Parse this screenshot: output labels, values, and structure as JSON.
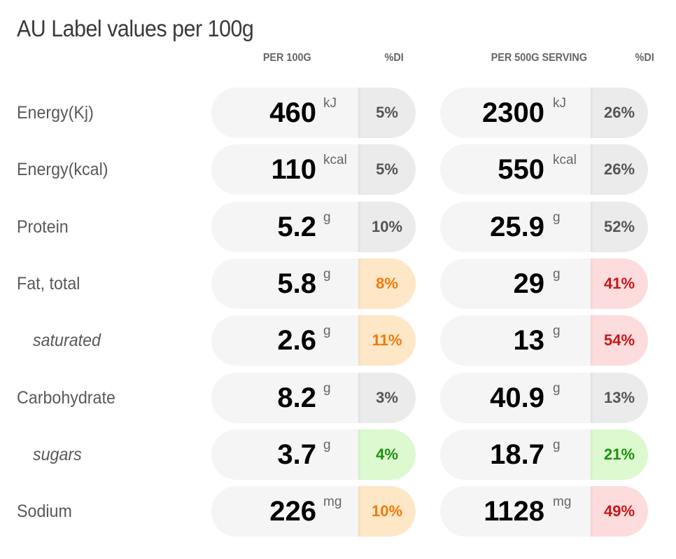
{
  "title": "AU Label values per 100g",
  "headers": {
    "per100": "PER 100G",
    "di1": "%DI",
    "perServing": "PER 500G SERVING",
    "di2": "%DI"
  },
  "colors": {
    "neutral": "#555555",
    "moderate": "#f07a0a",
    "high": "#c8161b",
    "low": "#1e8f10"
  },
  "rows": [
    {
      "label": "Energy(Kj)",
      "sub": false,
      "val100": "460",
      "unit": "kJ",
      "pct100": "5%",
      "level100": "neutral",
      "valServ": "2300",
      "pctServ": "26%",
      "levelServ": "neutral"
    },
    {
      "label": "Energy(kcal)",
      "sub": false,
      "val100": "110",
      "unit": "kcal",
      "pct100": "5%",
      "level100": "neutral",
      "valServ": "550",
      "pctServ": "26%",
      "levelServ": "neutral"
    },
    {
      "label": "Protein",
      "sub": false,
      "val100": "5.2",
      "unit": "g",
      "pct100": "10%",
      "level100": "neutral",
      "valServ": "25.9",
      "pctServ": "52%",
      "levelServ": "neutral"
    },
    {
      "label": "Fat, total",
      "sub": false,
      "val100": "5.8",
      "unit": "g",
      "pct100": "8%",
      "level100": "moderate",
      "valServ": "29",
      "pctServ": "41%",
      "levelServ": "high"
    },
    {
      "label": "saturated",
      "sub": true,
      "val100": "2.6",
      "unit": "g",
      "pct100": "11%",
      "level100": "moderate",
      "valServ": "13",
      "pctServ": "54%",
      "levelServ": "high"
    },
    {
      "label": "Carbohydrate",
      "sub": false,
      "val100": "8.2",
      "unit": "g",
      "pct100": "3%",
      "level100": "neutral",
      "valServ": "40.9",
      "pctServ": "13%",
      "levelServ": "neutral"
    },
    {
      "label": "sugars",
      "sub": true,
      "val100": "3.7",
      "unit": "g",
      "pct100": "4%",
      "level100": "low",
      "valServ": "18.7",
      "pctServ": "21%",
      "levelServ": "low"
    },
    {
      "label": "Sodium",
      "sub": false,
      "val100": "226",
      "unit": "mg",
      "pct100": "10%",
      "level100": "moderate",
      "valServ": "1128",
      "pctServ": "49%",
      "levelServ": "high"
    }
  ]
}
